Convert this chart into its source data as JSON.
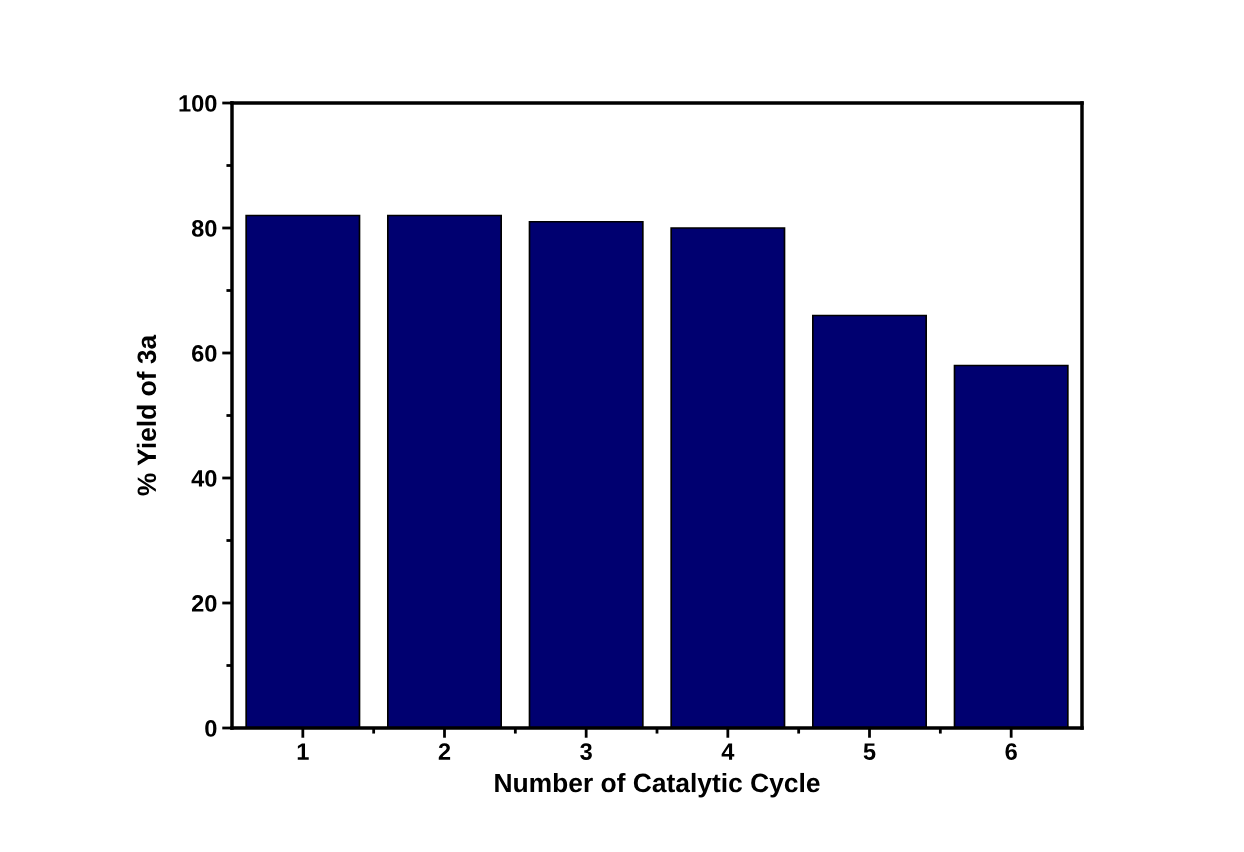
{
  "chart_data": {
    "type": "bar",
    "xlabel": "Number of Catalytic Cycle",
    "ylabel": "% Yield of 3a",
    "categories": [
      "1",
      "2",
      "3",
      "4",
      "5",
      "6"
    ],
    "values": [
      82,
      82,
      81,
      80,
      66,
      58
    ],
    "color": "#000070",
    "ylim": [
      0,
      100
    ],
    "yticks": [
      0,
      20,
      40,
      60,
      80,
      100
    ],
    "grid": false,
    "legend": false
  }
}
